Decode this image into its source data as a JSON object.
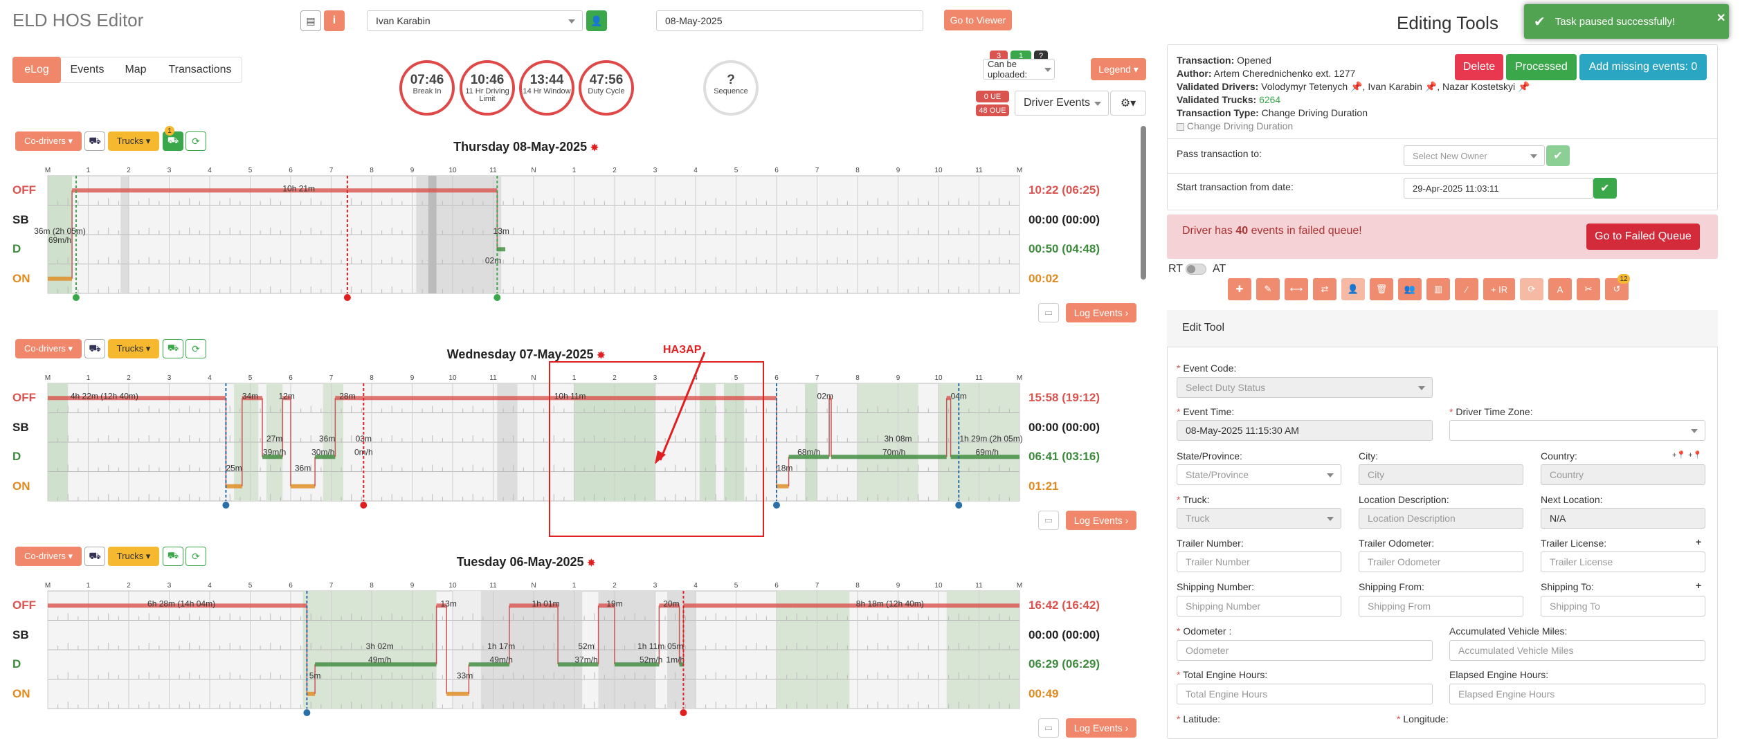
{
  "app": {
    "title": "ELD HOS Editor"
  },
  "driver_select": {
    "value": "Ivan Karabin"
  },
  "date_input": {
    "value": "08-May-2025"
  },
  "go_viewer": "Go to Viewer",
  "tabs": [
    "eLog",
    "Events",
    "Map",
    "Transactions"
  ],
  "dials": [
    {
      "value": "07:46",
      "label": "Break In"
    },
    {
      "value": "10:46",
      "label": "11 Hr Driving Limit"
    },
    {
      "value": "13:44",
      "label": "14 Hr Window"
    },
    {
      "value": "47:56",
      "label": "Duty Cycle"
    }
  ],
  "sequence": {
    "value": "?",
    "label": "Sequence"
  },
  "right_toolbar": {
    "badge1": "3",
    "badge2": "1",
    "badge3": "?",
    "upload": "Can be uploaded:",
    "legend": "Legend",
    "ue": "0 UE",
    "oue": "48 OUE",
    "driver_events": "Driver Events"
  },
  "days": [
    {
      "title": "Thursday 08-May-2025",
      "totals": {
        "off": "10:22 (06:25)",
        "sb": "00:00 (00:00)",
        "d": "00:50 (04:48)",
        "on": "00:02"
      },
      "notes": [
        "10h 21m",
        "36m (2h 05m)",
        "69m/h",
        "13m",
        "02m"
      ]
    },
    {
      "title": "Wednesday 07-May-2025",
      "totals": {
        "off": "15:58 (19:12)",
        "sb": "00:00 (00:00)",
        "d": "06:41 (03:16)",
        "on": "01:21"
      },
      "notes": [
        "4h 22m (12h 40m)",
        "34m",
        "12m",
        "28m",
        "10h 11m",
        "02m",
        "04m",
        "27m",
        "39m/h",
        "36m",
        "30m/h",
        "03m",
        "0m/h",
        "25m",
        "36m",
        "3h 08m",
        "68m/h",
        "70m/h",
        "1h 29m (2h 05m)",
        "69m/h",
        "18m"
      ]
    },
    {
      "title": "Tuesday 06-May-2025",
      "totals": {
        "off": "16:42 (16:42)",
        "sb": "00:00 (00:00)",
        "d": "06:29 (06:29)",
        "on": "00:49"
      },
      "notes": [
        "6h 28m (14h 04m)",
        "13m",
        "1h 01m",
        "19m",
        "20m",
        "8h 18m (12h 40m)",
        "3h 02m",
        "49m/h",
        "1h 17m",
        "49m/h",
        "52m",
        "37m/h",
        "1h 11m",
        "52m/h",
        "05m",
        "1m/h",
        "5m",
        "33m"
      ]
    }
  ],
  "status_labels": [
    "OFF",
    "SB",
    "D",
    "ON"
  ],
  "hour_labels": [
    "M",
    "1",
    "2",
    "3",
    "4",
    "5",
    "6",
    "7",
    "8",
    "9",
    "10",
    "11",
    "N",
    "1",
    "2",
    "3",
    "4",
    "5",
    "6",
    "7",
    "8",
    "9",
    "10",
    "11",
    "M"
  ],
  "co_drivers": "Co-drivers",
  "trucks": "Trucks",
  "log_events": "Log Events",
  "truck_badge": "1",
  "annotation": "НАЗАР",
  "editing": {
    "title": "Editing Tools",
    "transaction": "Opened",
    "author": "Artem Cherednichenko ext. 1277",
    "validated_drivers": [
      "Volodymyr Tetenych",
      "Ivan Karabin",
      "Nazar Kostetskyi"
    ],
    "validated_trucks": "6264",
    "transaction_type": "Change Driving Duration",
    "checkbox_label": "Change Driving Duration",
    "labels": {
      "transaction": "Transaction:",
      "author": "Author:",
      "drivers": "Validated Drivers:",
      "trucks": "Validated Trucks:",
      "type": "Transaction Type:"
    },
    "buttons": {
      "delete": "Delete",
      "processed": "Processed",
      "add_missing": "Add missing events: 0"
    },
    "pass_to": "Pass transaction to:",
    "pass_placeholder": "Select New Owner",
    "start_from": "Start transaction from date:",
    "start_value": "29-Apr-2025 11:03:11",
    "alert_prefix": "Driver has ",
    "alert_count": "40",
    "alert_suffix": " events in failed queue!",
    "failed_btn": "Go to Failed Queue",
    "rt": "RT",
    "at": "AT",
    "tool_badge": "12",
    "ir": "+ IR",
    "edit_tool": "Edit Tool"
  },
  "toast": "Task paused successfully!",
  "form": {
    "event_code": "Event Code:",
    "event_code_ph": "Select Duty Status",
    "event_time": "Event Time:",
    "event_time_val": "08-May-2025 11:15:30 AM",
    "tz": "Driver Time Zone:",
    "state": "State/Province:",
    "state_ph": "State/Province",
    "city": "City:",
    "city_ph": "City",
    "country": "Country:",
    "country_ph": "Country",
    "truck": "Truck:",
    "truck_ph": "Truck",
    "loc": "Location Description:",
    "loc_ph": "Location Description",
    "next": "Next Location:",
    "next_val": "N/A",
    "tr_num": "Trailer Number:",
    "tr_num_ph": "Trailer Number",
    "tr_odo": "Trailer Odometer:",
    "tr_odo_ph": "Trailer Odometer",
    "tr_lic": "Trailer License:",
    "tr_lic_ph": "Trailer License",
    "sh_num": "Shipping Number:",
    "sh_num_ph": "Shipping Number",
    "sh_from": "Shipping From:",
    "sh_from_ph": "Shipping From",
    "sh_to": "Shipping To:",
    "sh_to_ph": "Shipping To",
    "odo": "Odometer :",
    "odo_ph": "Odometer",
    "acc": "Accumulated Vehicle Miles:",
    "acc_ph": "Accumulated Vehicle Miles",
    "teh": "Total Engine Hours:",
    "teh_ph": "Total Engine Hours",
    "eeh": "Elapsed Engine Hours:",
    "eeh_ph": "Elapsed Engine Hours",
    "lat": "Latitude:",
    "lon": "Longitude:"
  },
  "colors": {
    "off": "#d9534f",
    "sb": "#222222",
    "d": "#3c8a3c",
    "on": "#e08a1e",
    "accent": "#f0876a",
    "green": "#3aa84a",
    "teal": "#2aa5c2"
  }
}
